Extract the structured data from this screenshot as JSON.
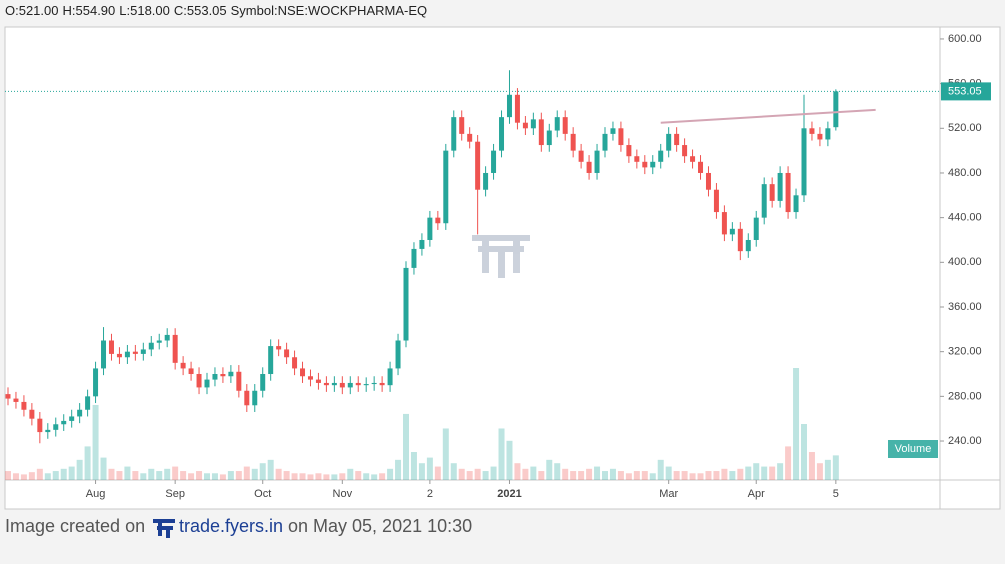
{
  "header": {
    "items": [
      "O:521.00",
      "H:554.90",
      "L:518.00",
      "C:553.05",
      "Symbol:NSE:WOCKPHARMA-EQ"
    ]
  },
  "chart_data": {
    "type": "candlestick",
    "categories": [
      null,
      null,
      null,
      null,
      null,
      null,
      null,
      null,
      null,
      null,
      null,
      "Aug",
      null,
      null,
      null,
      null,
      null,
      null,
      null,
      null,
      null,
      "Sep",
      null,
      null,
      null,
      null,
      null,
      null,
      null,
      null,
      null,
      null,
      "Oct",
      null,
      null,
      null,
      null,
      null,
      null,
      null,
      null,
      null,
      "Nov",
      null,
      null,
      null,
      null,
      null,
      null,
      null,
      null,
      null,
      null,
      "2",
      null,
      null,
      null,
      null,
      null,
      null,
      null,
      null,
      null,
      "2021",
      null,
      null,
      null,
      null,
      null,
      null,
      null,
      null,
      null,
      null,
      null,
      null,
      null,
      null,
      null,
      null,
      null,
      null,
      null,
      "Mar",
      null,
      null,
      null,
      null,
      null,
      null,
      null,
      null,
      null,
      null,
      "Apr",
      null,
      null,
      null,
      null,
      null,
      null,
      null,
      null,
      null,
      "5"
    ],
    "open": [
      282,
      278,
      275,
      268,
      260,
      248,
      250,
      255,
      258,
      262,
      268,
      280,
      305,
      330,
      318,
      315,
      320,
      318,
      322,
      328,
      330,
      335,
      310,
      305,
      300,
      288,
      295,
      300,
      298,
      302,
      285,
      272,
      285,
      300,
      325,
      322,
      315,
      305,
      298,
      295,
      292,
      290,
      292,
      288,
      292,
      290,
      291,
      292,
      290,
      305,
      330,
      395,
      412,
      420,
      440,
      435,
      500,
      530,
      515,
      508,
      465,
      480,
      500,
      530,
      550,
      525,
      520,
      528,
      505,
      518,
      530,
      515,
      500,
      490,
      480,
      500,
      515,
      520,
      505,
      495,
      490,
      485,
      490,
      500,
      515,
      505,
      495,
      490,
      480,
      465,
      445,
      425,
      430,
      410,
      420,
      440,
      470,
      455,
      480,
      445,
      460,
      520,
      515,
      510,
      521
    ],
    "high": [
      288,
      284,
      281,
      274,
      266,
      256,
      261,
      264,
      268,
      274,
      286,
      311,
      342,
      336,
      324,
      326,
      326,
      328,
      334,
      336,
      341,
      341,
      316,
      311,
      306,
      301,
      306,
      306,
      308,
      308,
      291,
      291,
      306,
      331,
      331,
      328,
      321,
      311,
      304,
      301,
      298,
      298,
      298,
      298,
      298,
      297,
      298,
      298,
      311,
      336,
      401,
      418,
      426,
      446,
      446,
      506,
      536,
      536,
      521,
      514,
      486,
      506,
      536,
      572,
      556,
      531,
      534,
      534,
      524,
      536,
      536,
      521,
      506,
      496,
      506,
      521,
      526,
      526,
      511,
      501,
      496,
      496,
      506,
      521,
      521,
      511,
      501,
      496,
      486,
      471,
      451,
      436,
      436,
      426,
      446,
      476,
      476,
      486,
      486,
      466,
      550,
      526,
      521,
      526,
      554.9
    ],
    "low": [
      272,
      269,
      262,
      254,
      238,
      242,
      244,
      249,
      252,
      256,
      262,
      274,
      299,
      312,
      309,
      309,
      312,
      312,
      316,
      322,
      324,
      304,
      299,
      294,
      282,
      282,
      289,
      292,
      292,
      279,
      266,
      266,
      279,
      294,
      316,
      309,
      299,
      292,
      289,
      286,
      284,
      284,
      282,
      282,
      284,
      284,
      285,
      284,
      284,
      299,
      324,
      389,
      406,
      414,
      429,
      429,
      494,
      509,
      502,
      425,
      459,
      474,
      494,
      524,
      519,
      514,
      514,
      499,
      499,
      512,
      509,
      494,
      484,
      474,
      474,
      494,
      509,
      499,
      489,
      484,
      479,
      479,
      484,
      494,
      499,
      489,
      484,
      474,
      459,
      439,
      419,
      419,
      402,
      404,
      414,
      434,
      449,
      449,
      439,
      439,
      454,
      509,
      504,
      504,
      518
    ],
    "close": [
      278,
      275,
      268,
      260,
      248,
      250,
      255,
      258,
      262,
      268,
      280,
      305,
      330,
      318,
      315,
      320,
      318,
      322,
      328,
      330,
      335,
      310,
      305,
      300,
      288,
      295,
      300,
      298,
      302,
      285,
      272,
      285,
      300,
      325,
      322,
      315,
      305,
      298,
      295,
      292,
      290,
      292,
      288,
      292,
      290,
      291,
      292,
      290,
      305,
      330,
      395,
      412,
      420,
      440,
      435,
      500,
      530,
      515,
      508,
      465,
      480,
      500,
      530,
      550,
      525,
      520,
      528,
      505,
      518,
      530,
      515,
      500,
      490,
      480,
      500,
      515,
      520,
      505,
      495,
      490,
      485,
      490,
      500,
      515,
      505,
      495,
      490,
      480,
      465,
      445,
      425,
      430,
      410,
      420,
      440,
      470,
      455,
      480,
      445,
      460,
      520,
      515,
      510,
      520,
      553.05
    ],
    "volume": [
      8,
      6,
      5,
      7,
      10,
      6,
      8,
      10,
      12,
      18,
      30,
      67,
      20,
      10,
      8,
      12,
      8,
      6,
      10,
      8,
      10,
      12,
      8,
      6,
      8,
      6,
      6,
      5,
      8,
      8,
      12,
      10,
      15,
      18,
      10,
      8,
      6,
      6,
      5,
      6,
      5,
      5,
      6,
      10,
      8,
      6,
      5,
      6,
      10,
      18,
      59,
      25,
      15,
      20,
      12,
      46,
      15,
      10,
      8,
      10,
      8,
      12,
      46,
      35,
      15,
      10,
      12,
      8,
      18,
      15,
      10,
      8,
      8,
      10,
      12,
      8,
      10,
      8,
      6,
      8,
      8,
      6,
      18,
      12,
      8,
      8,
      6,
      6,
      8,
      8,
      10,
      8,
      10,
      12,
      15,
      12,
      12,
      15,
      30,
      100,
      50,
      25,
      15,
      18,
      22
    ],
    "volume_label": "Volume",
    "up_color": "#26a69a",
    "down_color": "#ef5350",
    "last_price": 553.05,
    "trendline": {
      "start": [
        82,
        525
      ],
      "end": [
        109,
        536.5
      ],
      "color": "#d4a5b4"
    },
    "ylim": [
      205.1,
      610.7
    ],
    "yticks": [
      {
        "value": 240,
        "label": "240.00"
      },
      {
        "value": 280,
        "label": "280.00"
      },
      {
        "value": 320,
        "label": "320.00"
      },
      {
        "value": 360,
        "label": "360.00"
      },
      {
        "value": 400,
        "label": "400.00"
      },
      {
        "value": 440,
        "label": "440.00"
      },
      {
        "value": 480,
        "label": "480.00"
      },
      {
        "value": 520,
        "label": "520.00"
      },
      {
        "value": 560,
        "label": "560.00"
      },
      {
        "value": 600,
        "label": "600.00"
      }
    ]
  },
  "footer": {
    "prefix": "Image created on",
    "site": "trade.fyers.in",
    "suffix": "on May 05, 2021 10:30"
  }
}
